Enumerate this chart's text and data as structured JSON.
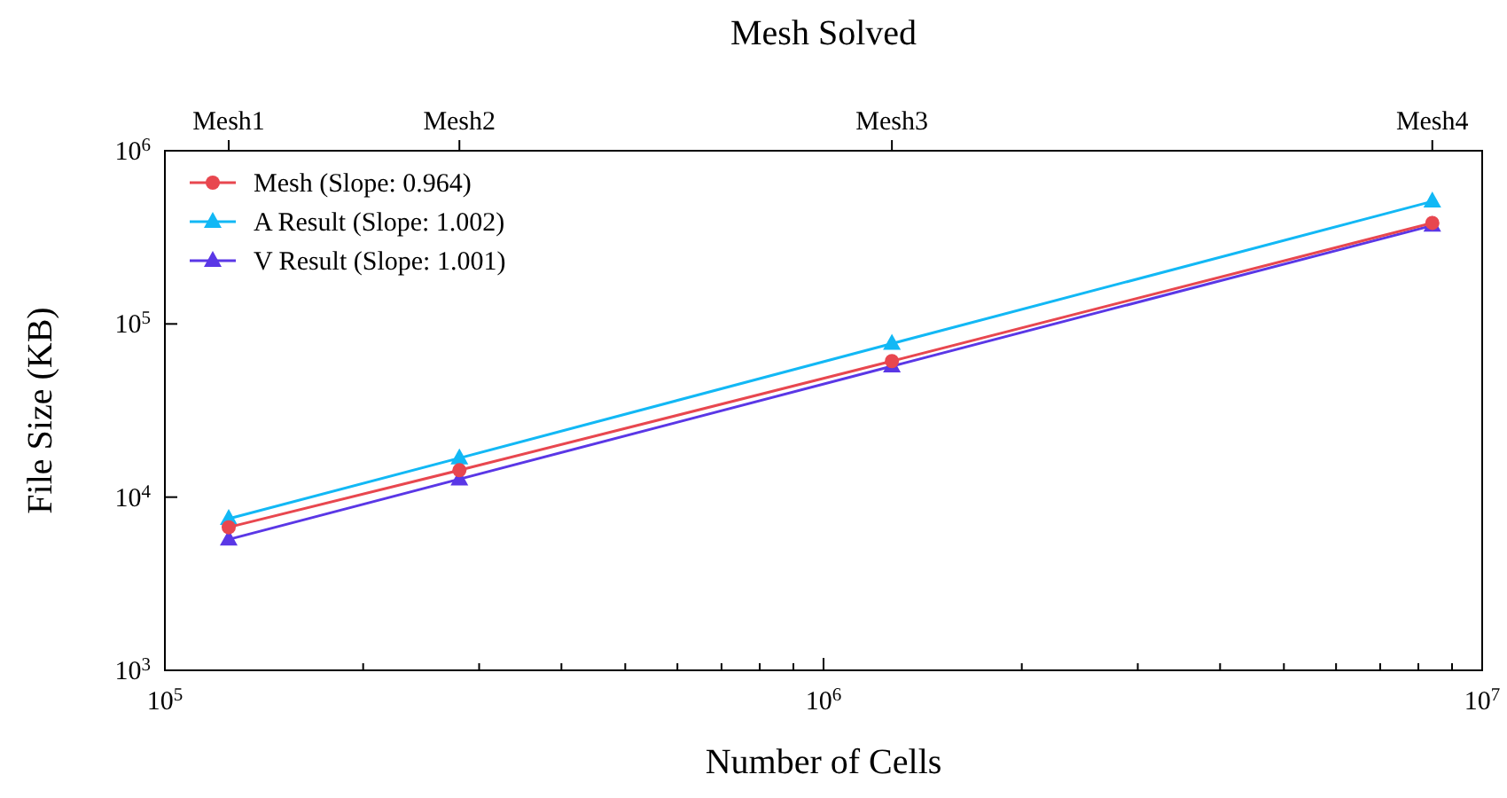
{
  "chart_data": {
    "type": "line",
    "xlabel": "Number of Cells",
    "ylabel": "File Size (KB)",
    "x2label": "Mesh Solved",
    "log": "xy",
    "legend": "top left",
    "grid": false,
    "line_style": "solid",
    "x": [
      125000,
      280000,
      1270000,
      8400000
    ],
    "xlim": [
      100000,
      10000000
    ],
    "xticks": [
      {
        "value": 100000,
        "label": "10$^{5}$"
      },
      {
        "value": 200000,
        "label": null
      },
      {
        "value": 300000,
        "label": null
      },
      {
        "value": 400000,
        "label": null
      },
      {
        "value": 500000,
        "label": null
      },
      {
        "value": 600000,
        "label": null
      },
      {
        "value": 700000,
        "label": null
      },
      {
        "value": 800000,
        "label": null
      },
      {
        "value": 900000,
        "label": null
      },
      {
        "value": 1000000,
        "label": "10$^{6}$"
      },
      {
        "value": 2000000,
        "label": null
      },
      {
        "value": 3000000,
        "label": null
      },
      {
        "value": 4000000,
        "label": null
      },
      {
        "value": 5000000,
        "label": null
      },
      {
        "value": 6000000,
        "label": null
      },
      {
        "value": 7000000,
        "label": null
      },
      {
        "value": 8000000,
        "label": null
      },
      {
        "value": 9000000,
        "label": null
      },
      {
        "value": 10000000,
        "label": "10$^{7}$"
      }
    ],
    "annotations": [
      {
        "text": "Mesh1",
        "x": 125000
      },
      {
        "text": "Mesh2",
        "x": 280000
      },
      {
        "text": "Mesh3",
        "x": 1270000
      },
      {
        "text": "Mesh4",
        "x": 8400000
      }
    ],
    "ylim": [
      1000,
      1000000
    ],
    "yticks": [
      {
        "value": 1000,
        "label": "10$^{3}$"
      },
      {
        "value": 10000,
        "label": "10$^{4}$"
      },
      {
        "value": 100000,
        "label": "10$^{5}$"
      },
      {
        "value": 1000000,
        "label": "10$^{6}$"
      }
    ],
    "series": [
      {
        "name": "Mesh (Slope: 0.964)",
        "color": "#e8474f",
        "marker": "circle",
        "values": [
          6700,
          14300,
          61000,
          383000
        ]
      },
      {
        "name": "A Result (Slope: 1.002)",
        "color": "#12b8f5",
        "marker": "triangle",
        "values": [
          7500,
          16800,
          77000,
          510000
        ]
      },
      {
        "name": "V Result (Slope: 1.001)",
        "color": "#5a37e6",
        "marker": "triangle",
        "values": [
          5700,
          12700,
          57000,
          370000
        ]
      }
    ]
  }
}
